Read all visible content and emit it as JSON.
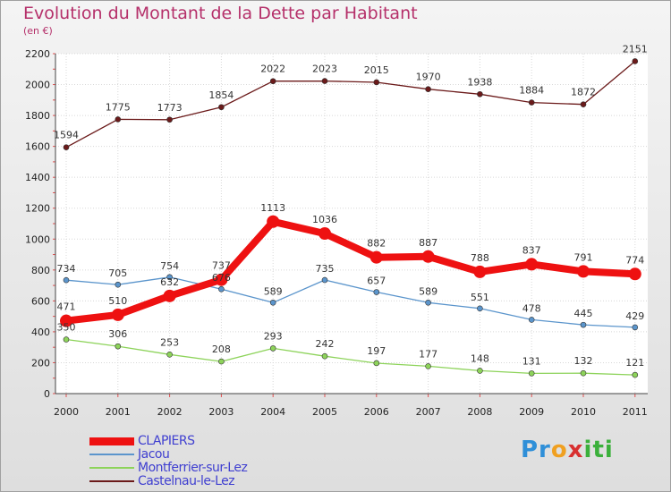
{
  "title": "Evolution du Montant de la Dette par Habitant",
  "subtitle": "(en €)",
  "logo": {
    "text": "Proxiti"
  },
  "chart_data": {
    "type": "line",
    "title": "Evolution du Montant de la Dette par Habitant",
    "subtitle": "(en €)",
    "xlabel": "",
    "ylabel": "",
    "x": [
      "2000",
      "2001",
      "2002",
      "2003",
      "2004",
      "2005",
      "2006",
      "2007",
      "2008",
      "2009",
      "2010",
      "2011"
    ],
    "yticks": [
      0,
      200,
      400,
      600,
      800,
      1000,
      1200,
      1400,
      1600,
      1800,
      2000,
      2200
    ],
    "ylim": [
      0,
      2200
    ],
    "grid": true,
    "legend_position": "bottom-left",
    "series": [
      {
        "name": "CLAPIERS",
        "color": "#ee1111",
        "values": [
          471,
          510,
          632,
          737,
          1113,
          1036,
          882,
          887,
          788,
          837,
          791,
          774
        ]
      },
      {
        "name": "Jacou",
        "color": "#5b95cc",
        "values": [
          734,
          705,
          754,
          676,
          589,
          735,
          657,
          589,
          551,
          478,
          445,
          429
        ]
      },
      {
        "name": "Montferrier-sur-Lez",
        "color": "#8dd35a",
        "values": [
          350,
          306,
          253,
          208,
          293,
          242,
          197,
          177,
          148,
          131,
          132,
          121
        ]
      },
      {
        "name": "Castelnau-le-Lez",
        "color": "#6b1a1a",
        "values": [
          1594,
          1775,
          1773,
          1854,
          2022,
          2023,
          2015,
          1970,
          1938,
          1884,
          1872,
          2151
        ]
      }
    ]
  }
}
